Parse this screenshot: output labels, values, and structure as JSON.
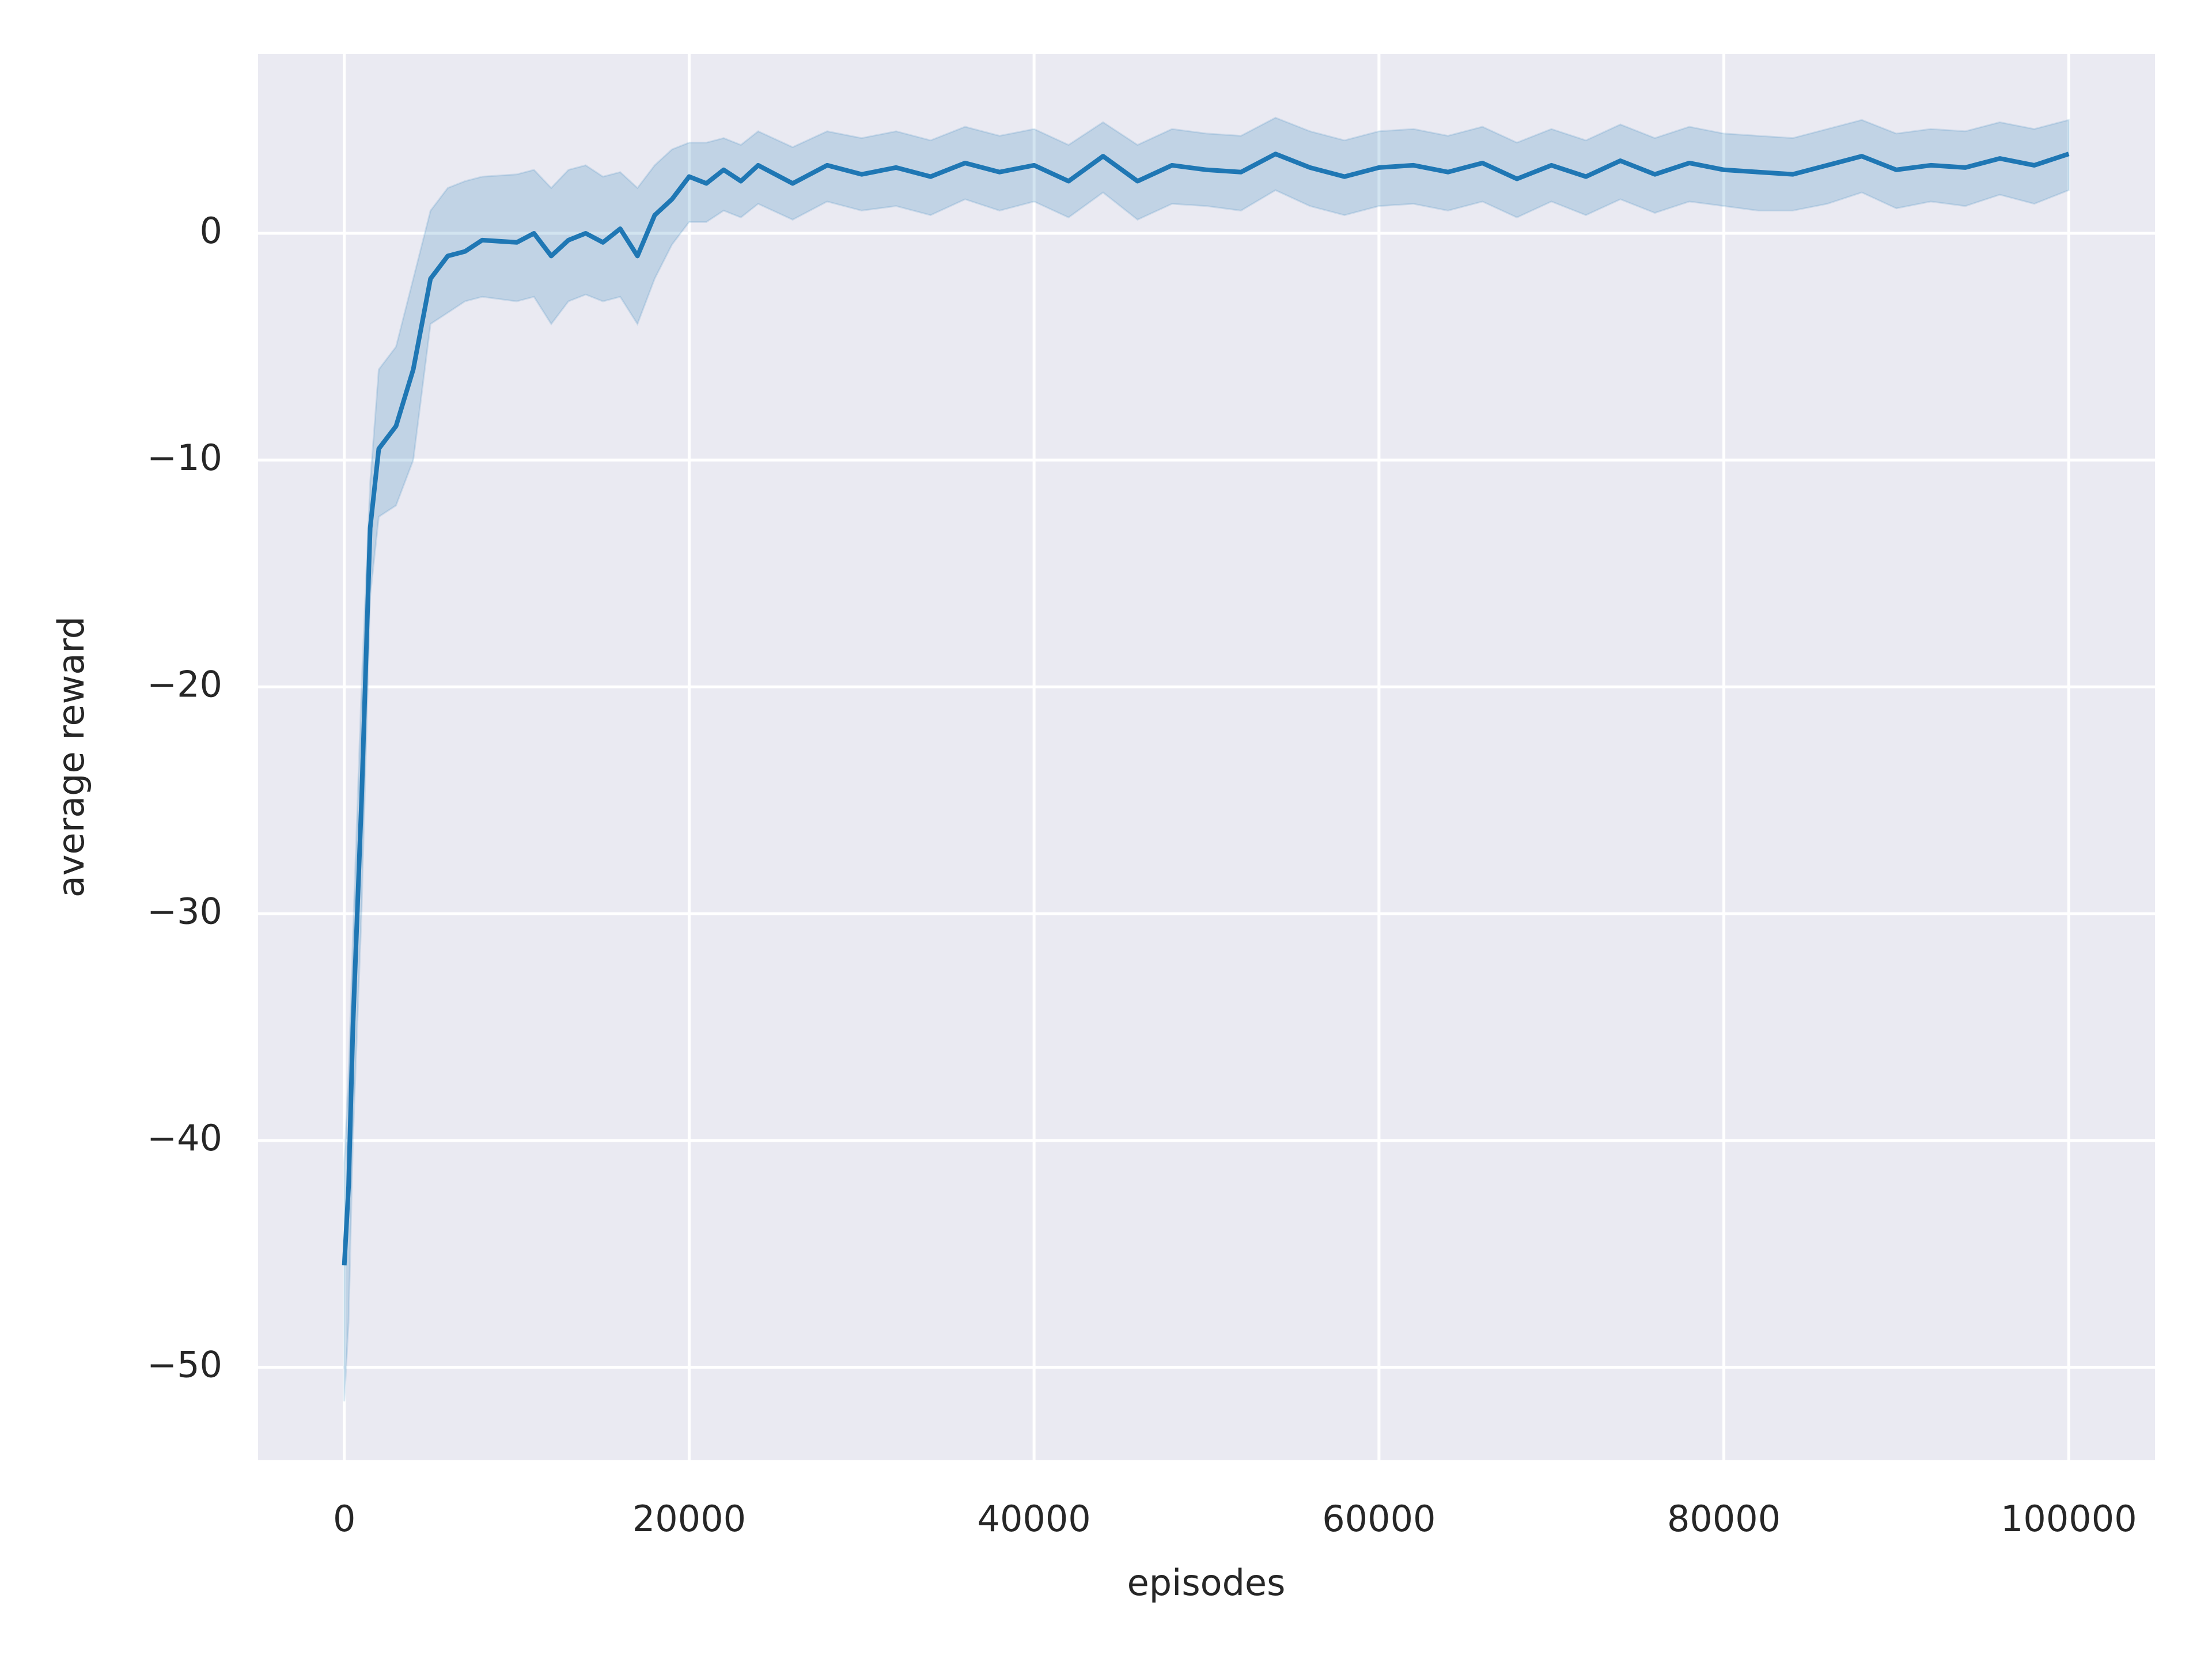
{
  "chart_data": {
    "type": "line",
    "xlabel": "episodes",
    "ylabel": "average reward",
    "color": "#1f77b4",
    "band_color": "#1f77b4",
    "grid": true,
    "background": "#eaeaf2",
    "xlim": [
      -5000,
      105000
    ],
    "ylim": [
      -54.1,
      7.9
    ],
    "xticks": [
      0,
      20000,
      40000,
      60000,
      80000,
      100000
    ],
    "yticks": [
      {
        "value": -50,
        "label": "−50"
      },
      {
        "value": -40,
        "label": "−40"
      },
      {
        "value": -30,
        "label": "−30"
      },
      {
        "value": -20,
        "label": "−20"
      },
      {
        "value": -10,
        "label": "−10"
      },
      0
    ],
    "x": [
      0,
      250,
      500,
      1000,
      1500,
      2000,
      3000,
      4000,
      5000,
      6000,
      7000,
      8000,
      10000,
      11000,
      12000,
      13000,
      14000,
      15000,
      16000,
      17000,
      18000,
      19000,
      20000,
      21000,
      22000,
      23000,
      24000,
      26000,
      28000,
      30000,
      32000,
      34000,
      36000,
      38000,
      40000,
      42000,
      44000,
      46000,
      48000,
      50000,
      52000,
      54000,
      56000,
      58000,
      60000,
      62000,
      64000,
      66000,
      68000,
      70000,
      72000,
      74000,
      76000,
      78000,
      80000,
      82000,
      84000,
      86000,
      88000,
      90000,
      92000,
      94000,
      96000,
      98000,
      100000
    ],
    "values": [
      -45.5,
      -42,
      -35,
      -25,
      -13,
      -9.5,
      -8.5,
      -6,
      -2,
      -1,
      -0.8,
      -0.3,
      -0.4,
      0,
      -1,
      -0.3,
      0,
      -0.4,
      0.2,
      -1,
      0.8,
      1.5,
      2.5,
      2.2,
      2.8,
      2.3,
      3.0,
      2.2,
      3.0,
      2.6,
      2.9,
      2.5,
      3.1,
      2.7,
      3.0,
      2.3,
      3.4,
      2.3,
      3.0,
      2.8,
      2.7,
      3.5,
      2.9,
      2.5,
      2.9,
      3.0,
      2.7,
      3.1,
      2.4,
      3.0,
      2.5,
      3.2,
      2.6,
      3.1,
      2.8,
      2.7,
      2.6,
      3.0,
      3.4,
      2.8,
      3.0,
      2.9,
      3.3,
      3.0,
      3.5
    ],
    "lower": [
      -51.5,
      -48,
      -40,
      -30,
      -16,
      -12.5,
      -12,
      -10,
      -4,
      -3.5,
      -3,
      -2.8,
      -3,
      -2.8,
      -4,
      -3,
      -2.7,
      -3,
      -2.8,
      -4,
      -2,
      -0.5,
      0.5,
      0.5,
      1,
      0.7,
      1.3,
      0.6,
      1.4,
      1,
      1.2,
      0.8,
      1.5,
      1,
      1.4,
      0.7,
      1.8,
      0.6,
      1.3,
      1.2,
      1,
      1.9,
      1.2,
      0.8,
      1.2,
      1.3,
      1,
      1.4,
      0.7,
      1.4,
      0.8,
      1.5,
      0.9,
      1.4,
      1.2,
      1,
      1,
      1.3,
      1.8,
      1.1,
      1.4,
      1.2,
      1.7,
      1.3,
      1.9
    ],
    "upper": [
      -41,
      -37,
      -31,
      -20,
      -11,
      -6,
      -5,
      -2,
      1,
      2,
      2.3,
      2.5,
      2.6,
      2.8,
      2,
      2.8,
      3,
      2.5,
      2.7,
      2,
      3,
      3.7,
      4,
      4,
      4.2,
      3.9,
      4.5,
      3.8,
      4.5,
      4.2,
      4.5,
      4.1,
      4.7,
      4.3,
      4.6,
      3.9,
      4.9,
      3.9,
      4.6,
      4.4,
      4.3,
      5.1,
      4.5,
      4.1,
      4.5,
      4.6,
      4.3,
      4.7,
      4,
      4.6,
      4.1,
      4.8,
      4.2,
      4.7,
      4.4,
      4.3,
      4.2,
      4.6,
      5,
      4.4,
      4.6,
      4.5,
      4.9,
      4.6,
      5
    ]
  }
}
